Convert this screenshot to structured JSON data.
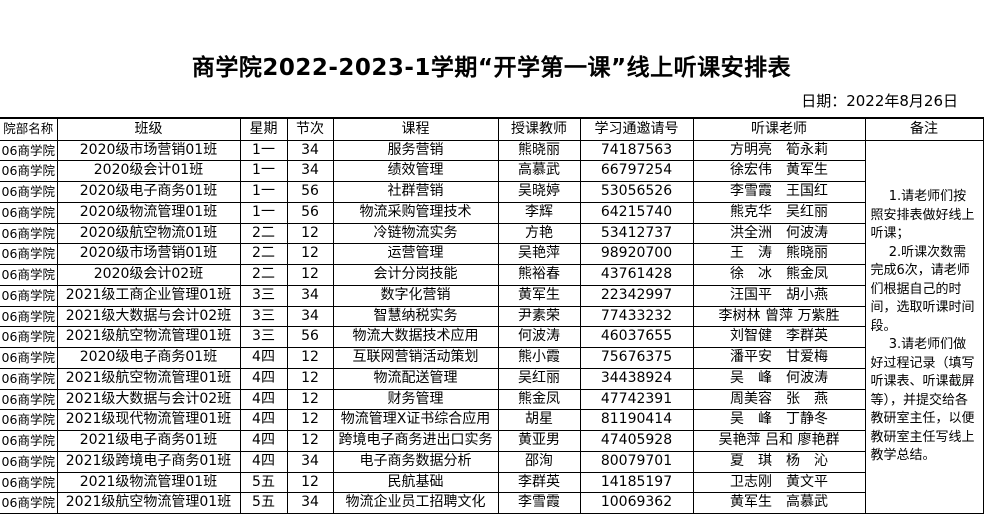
{
  "title": "商学院2022-2023-1学期“开学第一课”线上听课安排表",
  "date_label": "日期：2022年8月26日",
  "table": {
    "headers": [
      "院部名称",
      "班级",
      "星期",
      "节次",
      "课程",
      "授课教师",
      "学习通邀请号",
      "听课老师",
      "备注"
    ],
    "rows": [
      [
        "06商学院",
        "2020级市场营销01班",
        "1一",
        "34",
        "服务营销",
        "熊晓丽",
        "74187563",
        "方明亮　筍永莉"
      ],
      [
        "06商学院",
        "2020级会计01班",
        "1一",
        "34",
        "绩效管理",
        "高慕武",
        "66797254",
        "徐宏伟　黄军生"
      ],
      [
        "06商学院",
        "2020级电子商务01班",
        "1一",
        "56",
        "社群营销",
        "吴晓婷",
        "53056526",
        "李雪霞　王国红"
      ],
      [
        "06商学院",
        "2020级物流管理01班",
        "1一",
        "56",
        "物流采购管理技术",
        "李辉",
        "64215740",
        "熊克华　吴红丽"
      ],
      [
        "06商学院",
        "2020级航空物流01班",
        "2二",
        "12",
        "冷链物流实务",
        "方艳",
        "53412737",
        "洪全洲　何波涛"
      ],
      [
        "06商学院",
        "2020级市场营销01班",
        "2二",
        "12",
        "运营管理",
        "吴艳萍",
        "98920700",
        "王　涛　熊晓丽"
      ],
      [
        "06商学院",
        "2020级会计02班",
        "2二",
        "12",
        "会计分岗技能",
        "熊裕春",
        "43761428",
        "徐　冰　熊金凤"
      ],
      [
        "06商学院",
        "2021级工商企业管理01班",
        "3三",
        "34",
        "数字化营销",
        "黄军生",
        "22342997",
        "汪国平　胡小燕"
      ],
      [
        "06商学院",
        "2021级大数据与会计02班",
        "3三",
        "34",
        "智慧纳税实务",
        "尹素荣",
        "77433232",
        "李树林 曾萍 万紫胜"
      ],
      [
        "06商学院",
        "2021级航空物流管理01班",
        "3三",
        "56",
        "物流大数据技术应用",
        "何波涛",
        "46037655",
        "刘智健　李群英"
      ],
      [
        "06商学院",
        "2020级电子商务01班",
        "4四",
        "12",
        "互联网营销活动策划",
        "熊小霞",
        "75676375",
        "潘平安　甘爱梅"
      ],
      [
        "06商学院",
        "2021级航空物流管理01班",
        "4四",
        "12",
        "物流配送管理",
        "吴红丽",
        "34438924",
        "吴　峰　何波涛"
      ],
      [
        "06商学院",
        "2021级大数据与会计02班",
        "4四",
        "12",
        "财务管理",
        "熊金凤",
        "47742391",
        "周美容　张　燕"
      ],
      [
        "06商学院",
        "2021级现代物流管理01班",
        "4四",
        "12",
        "物流管理X证书综合应用",
        "胡星",
        "81190414",
        "吴　峰　丁静冬"
      ],
      [
        "06商学院",
        "2021级电子商务01班",
        "4四",
        "12",
        "跨境电子商务进出口实务",
        "黄亚男",
        "47405928",
        "吴艳萍 吕和 廖艳群"
      ],
      [
        "06商学院",
        "2021级跨境电子商务01班",
        "4四",
        "34",
        "电子商务数据分析",
        "邵洵",
        "80079701",
        "夏　琪　杨　沁"
      ],
      [
        "06商学院",
        "2021级物流管理01班",
        "5五",
        "12",
        "民航基础",
        "李群英",
        "14185197",
        "卫志刚　黄文平"
      ],
      [
        "06商学院",
        "2021级航空物流管理01班",
        "5五",
        "34",
        "物流企业员工招聘文化",
        "李雪霞",
        "10069362",
        "黄军生　高慕武"
      ]
    ],
    "remark_lines": [
      "1.请老师们按照安排表做好线上听课；",
      "2.听课次数需完成6次，请老师们根据自己的时间，选取听课时间段。",
      "3.请老师们做好过程记录（填写听课表、听课截屏等），并提交给各教研室主任，以便教研室主任写线上教学总结。"
    ]
  }
}
